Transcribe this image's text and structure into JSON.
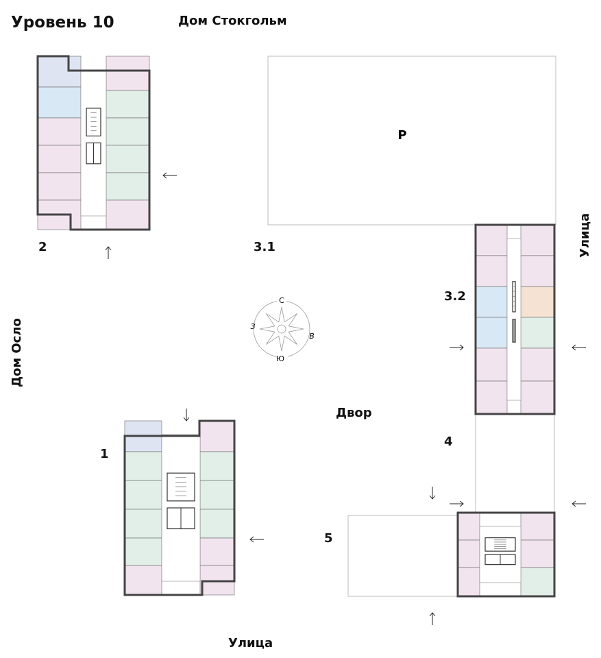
{
  "title": "Уровень 10",
  "labels": {
    "house_stockholm": "Дом Стокгольм",
    "house_oslo": "Дом Осло",
    "street_right": "Улица",
    "street_bottom": "Улица",
    "yard": "Двор",
    "parking": "P"
  },
  "buildings": [
    {
      "number": "2"
    },
    {
      "number": "3.1"
    },
    {
      "number": "3.2"
    },
    {
      "number": "4"
    },
    {
      "number": "1"
    },
    {
      "number": "5"
    }
  ],
  "compass": {
    "north": "С",
    "south": "Ю",
    "east": "В",
    "west": "З"
  },
  "colors": {
    "pink": "#f2e4ef",
    "green": "#e2efe8",
    "blue": "#dfe4f3",
    "light_blue": "#d8e8f5",
    "orange": "#f6e2d2",
    "wall": "#444444"
  }
}
